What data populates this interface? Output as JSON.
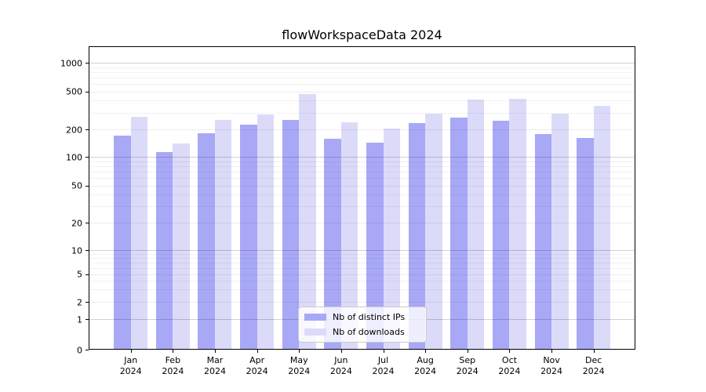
{
  "title": "flowWorkspaceData 2024",
  "legend": {
    "items": [
      {
        "label": "Nb of distinct IPs",
        "color": "#a8a8f7"
      },
      {
        "label": "Nb of downloads",
        "color": "#dbdbf9"
      }
    ]
  },
  "chart_data": {
    "type": "bar",
    "title": "flowWorkspaceData 2024",
    "categories": [
      "Jan",
      "Feb",
      "Mar",
      "Apr",
      "May",
      "Jun",
      "Jul",
      "Aug",
      "Sep",
      "Oct",
      "Nov",
      "Dec"
    ],
    "x_tick_year": "2024",
    "series": [
      {
        "name": "Nb of distinct IPs",
        "color": "#a8a8f7",
        "values": [
          170,
          112,
          180,
          225,
          250,
          158,
          142,
          233,
          265,
          247,
          178,
          162
        ]
      },
      {
        "name": "Nb of downloads",
        "color": "#dbdbf9",
        "values": [
          270,
          140,
          250,
          285,
          470,
          237,
          205,
          295,
          410,
          420,
          293,
          356
        ]
      }
    ],
    "xlabel": "",
    "ylabel": "",
    "y_scale": "symlog",
    "y_ticks": [
      0,
      1,
      2,
      5,
      10,
      20,
      50,
      100,
      200,
      500,
      1000
    ],
    "ylim": [
      0,
      1400
    ],
    "grid": true,
    "legend_position": "lower center"
  }
}
